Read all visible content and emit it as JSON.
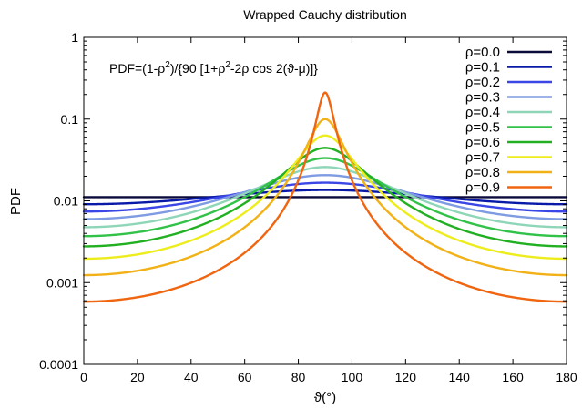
{
  "chart_data": {
    "type": "line",
    "title": "Wrapped Cauchy distribution",
    "xlabel": "ϑ(°)",
    "ylabel": "PDF",
    "xlim": [
      0,
      180
    ],
    "ylim": [
      0.0001,
      1
    ],
    "y_scale": "log",
    "grid": false,
    "legend_position": "top-right",
    "x_ticks": [
      0,
      20,
      40,
      60,
      80,
      100,
      120,
      140,
      160,
      180
    ],
    "x_tick_labels": [
      "0",
      "20",
      "40",
      "60",
      "80",
      "100",
      "120",
      "140",
      "160",
      "180"
    ],
    "y_ticks": [
      0.0001,
      0.001,
      0.01,
      0.1,
      1
    ],
    "y_tick_labels": [
      "0.0001",
      "0.001",
      "0.01",
      "0.1",
      "1"
    ],
    "annotation": {
      "prefix": "PDF=(1-ρ",
      "sup1": "2",
      "middle": ")/{90 [1+ρ",
      "sup2": "2",
      "suffix": "-2ρ cos 2(ϑ-μ)]}"
    },
    "mu": 90,
    "series": [
      {
        "name": "ρ=0.0",
        "rho": 0.0,
        "color": "#0b0b3b"
      },
      {
        "name": "ρ=0.1",
        "rho": 0.1,
        "color": "#0a1aa8"
      },
      {
        "name": "ρ=0.2",
        "rho": 0.2,
        "color": "#3a46e6"
      },
      {
        "name": "ρ=0.3",
        "rho": 0.3,
        "color": "#7f9be2"
      },
      {
        "name": "ρ=0.4",
        "rho": 0.4,
        "color": "#8fd6b8"
      },
      {
        "name": "ρ=0.5",
        "rho": 0.5,
        "color": "#32c24a"
      },
      {
        "name": "ρ=0.6",
        "rho": 0.6,
        "color": "#22b022"
      },
      {
        "name": "ρ=0.7",
        "rho": 0.7,
        "color": "#eded1e"
      },
      {
        "name": "ρ=0.8",
        "rho": 0.8,
        "color": "#f2b217"
      },
      {
        "name": "ρ=0.9",
        "rho": 0.9,
        "color": "#f06510"
      }
    ]
  }
}
